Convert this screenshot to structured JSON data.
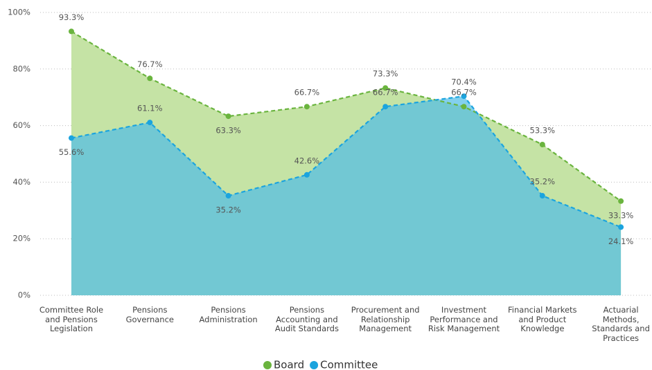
{
  "chart_data": {
    "type": "area",
    "categories": [
      "Committee Role and Pensions Legislation",
      "Pensions Governance",
      "Pensions Administration",
      "Pensions Accounting and Audit Standards",
      "Procurement and Relationship Management",
      "Investment Performance and Risk Management",
      "Financial Markets and Product Knowledge",
      "Actuarial Methods, Standards and Practices"
    ],
    "series": [
      {
        "name": "Board",
        "color": "#6ab43e",
        "fill": "#c5e3a5",
        "values": [
          93.3,
          76.7,
          63.3,
          66.7,
          73.3,
          66.7,
          53.3,
          33.3
        ],
        "value_labels": [
          "93.3%",
          "76.7%",
          "63.3%",
          "66.7%",
          "73.3%",
          "66.7%",
          "53.3%",
          "33.3%"
        ]
      },
      {
        "name": "Committee",
        "color": "#1ba4de",
        "fill": "#4ebce7",
        "values": [
          55.6,
          61.1,
          35.2,
          42.6,
          66.7,
          70.4,
          35.2,
          24.1
        ],
        "value_labels": [
          "55.6%",
          "61.1%",
          "35.2%",
          "42.6%",
          "66.7%",
          "70.4%",
          "35.2%",
          "24.1%"
        ]
      }
    ],
    "ylim": [
      0,
      100
    ],
    "yticks": [
      {
        "value": 0,
        "label": "0%"
      },
      {
        "value": 20,
        "label": "20%"
      },
      {
        "value": 40,
        "label": "40%"
      },
      {
        "value": 60,
        "label": "60%"
      },
      {
        "value": 80,
        "label": "80%"
      },
      {
        "value": 100,
        "label": "100%"
      }
    ],
    "grid": true,
    "legend": "bottom"
  }
}
